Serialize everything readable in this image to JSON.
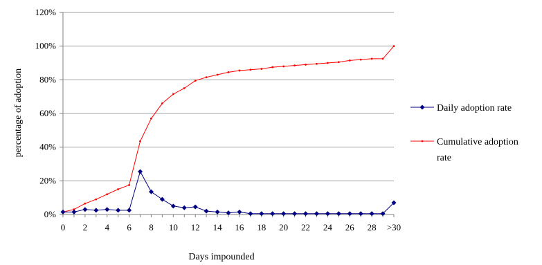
{
  "chart_data": {
    "type": "line",
    "xlabel": "Days impounded",
    "ylabel": "percentage of adoption",
    "x": [
      "0",
      "1",
      "2",
      "3",
      "4",
      "5",
      "6",
      "7",
      "8",
      "9",
      "10",
      "11",
      "12",
      "13",
      "14",
      "15",
      "16",
      "17",
      "18",
      "19",
      "20",
      "21",
      "22",
      "23",
      "24",
      "25",
      "26",
      "27",
      "28",
      "29",
      ">30"
    ],
    "x_tick_labels": [
      "0",
      "2",
      "4",
      "6",
      "8",
      "10",
      "12",
      "14",
      "16",
      "18",
      "20",
      "22",
      "24",
      "26",
      "28",
      ">30"
    ],
    "y_ticks": [
      "0%",
      "20%",
      "40%",
      "60%",
      "80%",
      "100%",
      "120%"
    ],
    "ylim": [
      0,
      120
    ],
    "grid": "horizontal",
    "legend_position": "right",
    "series": [
      {
        "name": "Daily adoption rate",
        "color": "#000080",
        "marker": "diamond",
        "values": [
          1.5,
          1.5,
          3.0,
          2.5,
          3.0,
          2.5,
          2.5,
          25.5,
          13.5,
          9.0,
          5.0,
          4.0,
          4.5,
          2.0,
          1.5,
          1.0,
          1.5,
          0.5,
          0.5,
          0.5,
          0.5,
          0.5,
          0.5,
          0.5,
          0.5,
          0.5,
          0.5,
          0.5,
          0.5,
          0.5,
          7.0
        ]
      },
      {
        "name": "Cumulative adoption rate",
        "color": "#ff0000",
        "marker": "dot",
        "values": [
          1.5,
          3.0,
          6.5,
          9.0,
          12.0,
          15.0,
          17.5,
          43.5,
          57.0,
          66.0,
          71.5,
          75.0,
          79.5,
          81.5,
          83.0,
          84.5,
          85.5,
          86.0,
          86.5,
          87.5,
          88.0,
          88.5,
          89.0,
          89.5,
          90.0,
          90.5,
          91.5,
          92.0,
          92.5,
          92.5,
          100.0
        ]
      }
    ]
  }
}
